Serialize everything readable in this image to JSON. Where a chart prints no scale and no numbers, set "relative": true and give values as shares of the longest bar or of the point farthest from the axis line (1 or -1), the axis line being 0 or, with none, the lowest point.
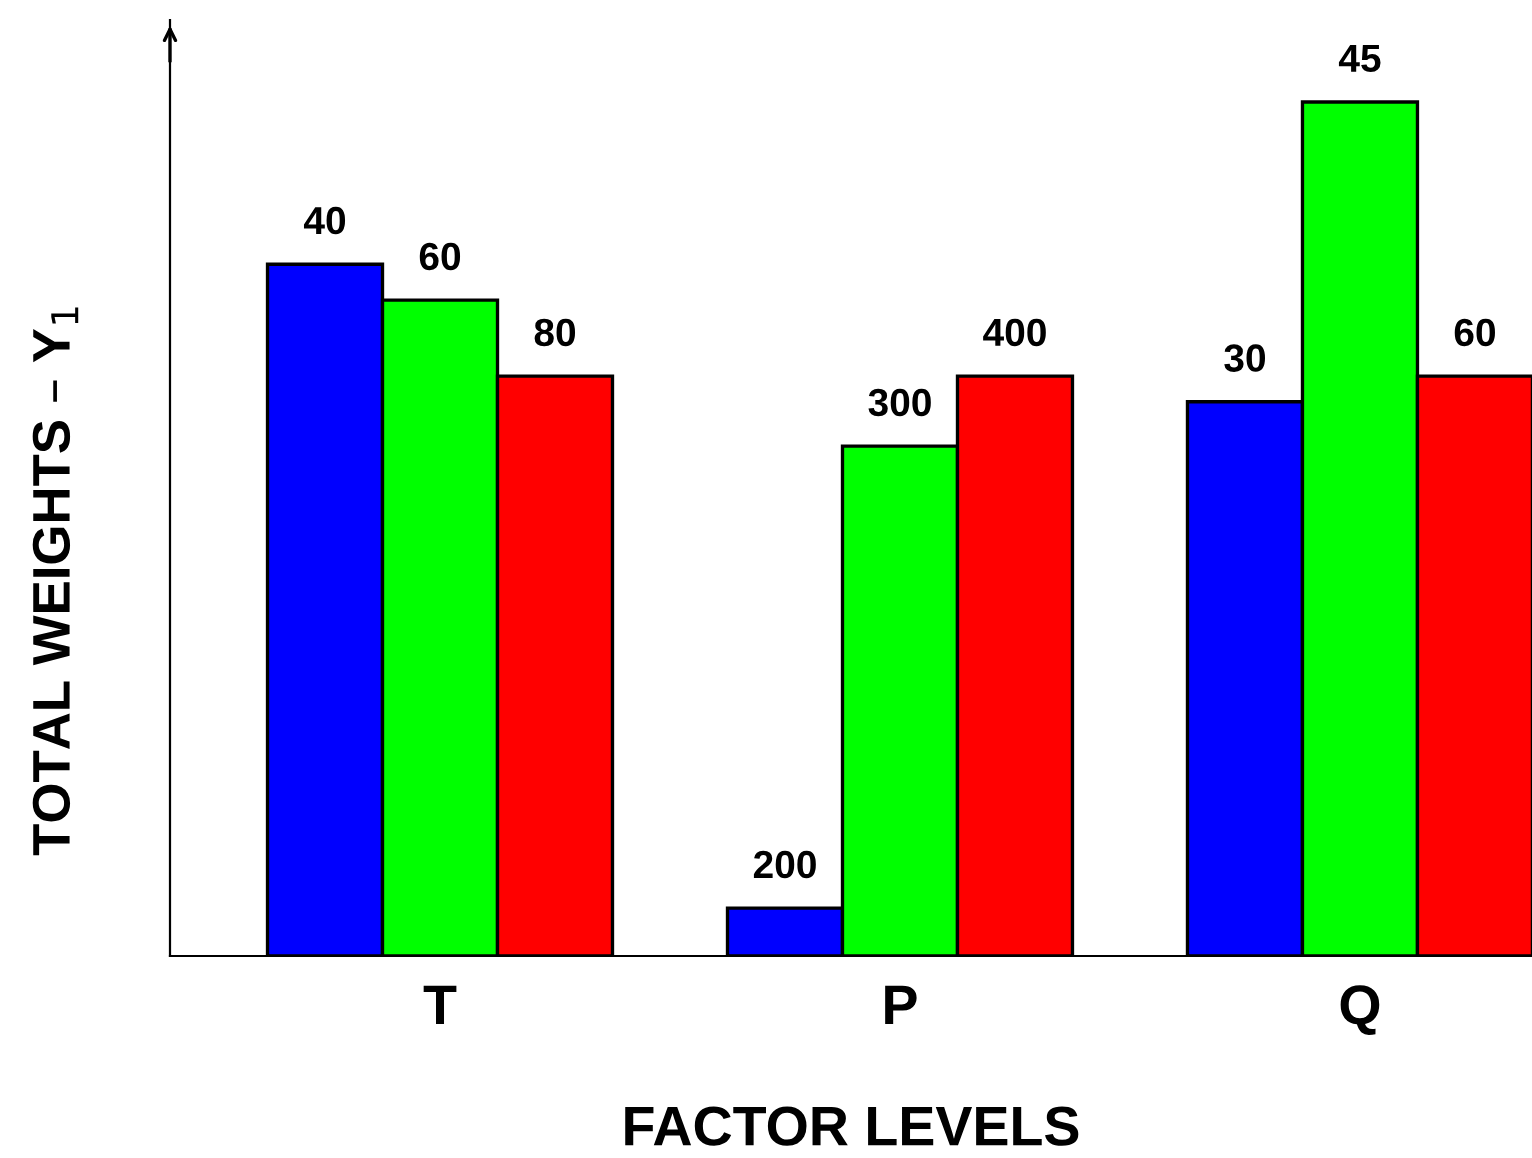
{
  "chart_data": {
    "type": "bar",
    "relative": true,
    "xlabel": "FACTOR LEVELS",
    "ylabel": "TOTAL WEIGHTS – Y$_{1}$",
    "categories": [
      "T",
      "P",
      "Q"
    ],
    "series": [
      {
        "color": "#0000ff",
        "values": [
          0.81,
          0.056,
          0.649
        ]
      },
      {
        "color": "#00ff00",
        "values": [
          0.768,
          0.597,
          1.0
        ]
      },
      {
        "color": "#ff0000",
        "values": [
          0.679,
          0.679,
          0.679
        ]
      }
    ],
    "annotations": [
      "40",
      "60",
      "80",
      "200",
      "300",
      "400",
      "30",
      "45",
      "60"
    ],
    "grid": false,
    "legend": false
  }
}
